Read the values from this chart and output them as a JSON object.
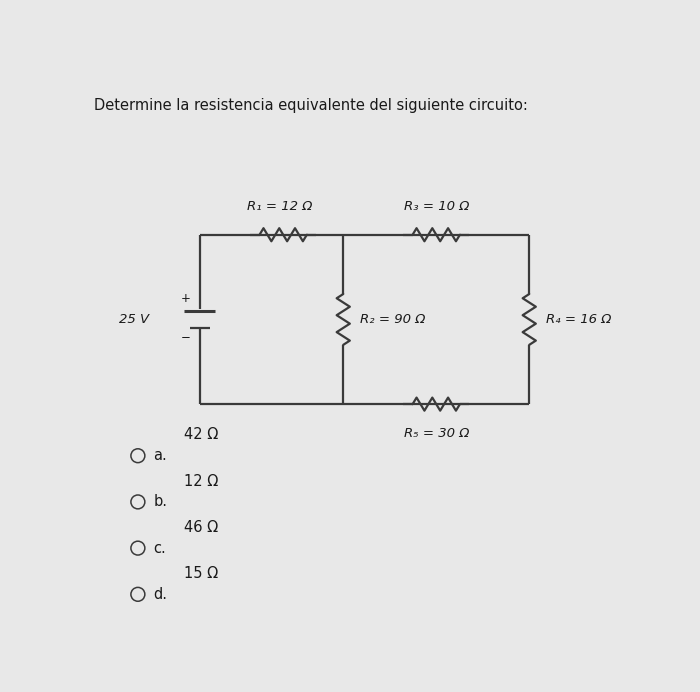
{
  "title": "Determine la resistencia equivalente del siguiente circuito:",
  "title_fontsize": 10.5,
  "background_color": "#e8e8e8",
  "R1_label": "R₁ = 12 Ω",
  "R2_label": "R₂ = 90 Ω",
  "R3_label": "R₃ = 10 Ω",
  "R4_label": "R₄ = 16 Ω",
  "R5_label": "R₅ = 30 Ω",
  "voltage_label": "25 V",
  "plus_label": "+",
  "minus_label": "−",
  "options": [
    {
      "letter": "a.",
      "value": "42 Ω"
    },
    {
      "letter": "b.",
      "value": "12 Ω"
    },
    {
      "letter": "c.",
      "value": "46 Ω"
    },
    {
      "letter": "d.",
      "value": "15 Ω"
    }
  ],
  "line_color": "#3a3a3a",
  "text_color": "#1a1a1a",
  "bg_color": "#e8e8e8",
  "lw": 1.6
}
